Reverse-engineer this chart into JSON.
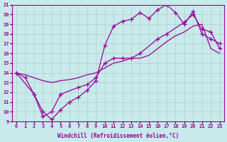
{
  "xlabel": "Windchill (Refroidissement éolien,°C)",
  "bg_color": "#c8eaea",
  "line_color": "#990099",
  "grid_color": "#b0cccc",
  "xlim": [
    -0.5,
    23.5
  ],
  "ylim": [
    9,
    21
  ],
  "xticks": [
    0,
    1,
    2,
    3,
    4,
    5,
    6,
    7,
    8,
    9,
    10,
    11,
    12,
    13,
    14,
    15,
    16,
    17,
    18,
    19,
    20,
    21,
    22,
    23
  ],
  "yticks": [
    9,
    10,
    11,
    12,
    13,
    14,
    15,
    16,
    17,
    18,
    19,
    20,
    21
  ],
  "line1_x": [
    0,
    1,
    2,
    3,
    4,
    5,
    6,
    7,
    8,
    9,
    10,
    11,
    12,
    13,
    14,
    15,
    16,
    17,
    18,
    19,
    20,
    21,
    22,
    23
  ],
  "line1_y": [
    14,
    13.5,
    11.8,
    10.0,
    9.2,
    10.2,
    11.0,
    11.5,
    12.2,
    13.2,
    16.8,
    18.8,
    19.3,
    19.5,
    20.2,
    19.6,
    20.5,
    21.0,
    20.2,
    19.0,
    20.3,
    18.0,
    17.5,
    17.0
  ],
  "line2_x": [
    0,
    1,
    2,
    3,
    4,
    5,
    6,
    7,
    8,
    9,
    10,
    11,
    12,
    13,
    14,
    15,
    16,
    17,
    18,
    19,
    20,
    21,
    22,
    23
  ],
  "line2_y": [
    14,
    13.8,
    13.5,
    13.2,
    13.0,
    13.2,
    13.3,
    13.5,
    13.8,
    14.0,
    14.5,
    15.0,
    15.2,
    15.5,
    15.5,
    15.8,
    16.5,
    17.2,
    17.8,
    18.2,
    18.8,
    19.0,
    16.5,
    16.0
  ],
  "line3_x": [
    0,
    2,
    3,
    4,
    5,
    7,
    8,
    9,
    10,
    11,
    12,
    13,
    14,
    16,
    17,
    19,
    20,
    21,
    22,
    23
  ],
  "line3_y": [
    14,
    11.8,
    9.5,
    10.0,
    11.8,
    12.5,
    12.8,
    13.5,
    15.0,
    15.5,
    15.5,
    15.5,
    16.0,
    17.5,
    18.0,
    19.2,
    20.0,
    18.5,
    18.2,
    16.5
  ]
}
